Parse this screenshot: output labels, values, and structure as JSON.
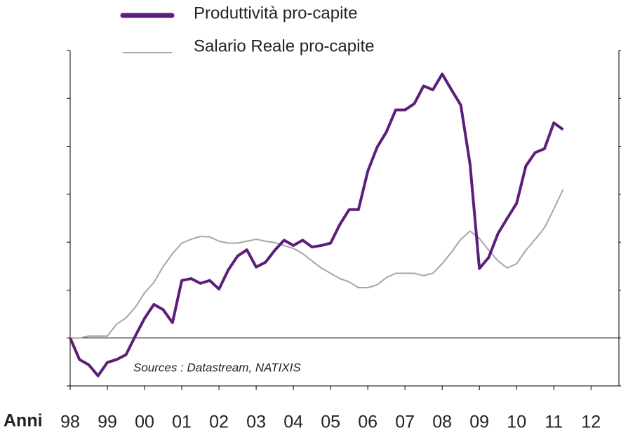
{
  "chart_data": {
    "type": "line",
    "x_label": "Anni",
    "annotation": "Sources : Datastream, NATIXIS",
    "x": [
      1998,
      1998.25,
      1998.5,
      1998.75,
      1999,
      1999.25,
      1999.5,
      1999.75,
      2000,
      2000.25,
      2000.5,
      2000.75,
      2001,
      2001.25,
      2001.5,
      2001.75,
      2002,
      2002.25,
      2002.5,
      2002.75,
      2003,
      2003.25,
      2003.5,
      2003.75,
      2004,
      2004.25,
      2004.5,
      2004.75,
      2005,
      2005.25,
      2005.5,
      2005.75,
      2006,
      2006.25,
      2006.5,
      2006.75,
      2007,
      2007.25,
      2007.5,
      2007.75,
      2008,
      2008.25,
      2008.5,
      2008.75,
      2009,
      2009.25,
      2009.5,
      2009.75,
      2010,
      2010.25,
      2010.5,
      2010.75,
      2011,
      2011.25
    ],
    "series": [
      {
        "name": "Produttività pro-capite",
        "color": "#5b1f7a",
        "width": 4,
        "values": [
          0,
          -0.45,
          -0.56,
          -0.79,
          -0.51,
          -0.45,
          -0.35,
          0.04,
          0.41,
          0.7,
          0.59,
          0.32,
          1.2,
          1.24,
          1.14,
          1.2,
          1.02,
          1.42,
          1.71,
          1.84,
          1.48,
          1.58,
          1.83,
          2.04,
          1.93,
          2.04,
          1.9,
          1.93,
          1.98,
          2.37,
          2.68,
          2.68,
          3.48,
          3.98,
          4.3,
          4.76,
          4.76,
          4.89,
          5.26,
          5.18,
          5.51,
          5.18,
          4.86,
          3.62,
          1.45,
          1.68,
          2.18,
          2.5,
          2.81,
          3.59,
          3.87,
          3.95,
          4.49,
          4.35
        ]
      },
      {
        "name": "Salario Reale pro-capite",
        "color": "#a6a6a6",
        "width": 2,
        "values": [
          0,
          0,
          0.04,
          0.04,
          0.04,
          0.29,
          0.42,
          0.64,
          0.94,
          1.16,
          1.49,
          1.76,
          1.98,
          2.06,
          2.12,
          2.11,
          2.02,
          1.98,
          1.98,
          2.02,
          2.06,
          2.02,
          1.99,
          1.93,
          1.87,
          1.76,
          1.61,
          1.46,
          1.35,
          1.24,
          1.17,
          1.05,
          1.05,
          1.11,
          1.26,
          1.35,
          1.35,
          1.35,
          1.3,
          1.35,
          1.55,
          1.79,
          2.06,
          2.23,
          2.08,
          1.83,
          1.61,
          1.46,
          1.55,
          1.83,
          2.06,
          2.3,
          2.69,
          3.1
        ]
      }
    ],
    "xlim": [
      1998,
      2012.75
    ],
    "xticks": [
      {
        "value": 1998,
        "label": "98"
      },
      {
        "value": 1999,
        "label": "99"
      },
      {
        "value": 2000,
        "label": "00"
      },
      {
        "value": 2001,
        "label": "01"
      },
      {
        "value": 2002,
        "label": "02"
      },
      {
        "value": 2003,
        "label": "03"
      },
      {
        "value": 2004,
        "label": "04"
      },
      {
        "value": 2005,
        "label": "05"
      },
      {
        "value": 2006,
        "label": "06"
      },
      {
        "value": 2007,
        "label": "07"
      },
      {
        "value": 2008,
        "label": "08"
      },
      {
        "value": 2009,
        "label": "09"
      },
      {
        "value": 2010,
        "label": "10"
      },
      {
        "value": 2011,
        "label": "11"
      },
      {
        "value": 2012,
        "label": "12"
      }
    ],
    "ylim": [
      -1,
      6
    ],
    "yticks": [
      -1,
      0,
      1,
      2,
      3,
      4,
      5,
      6
    ]
  }
}
